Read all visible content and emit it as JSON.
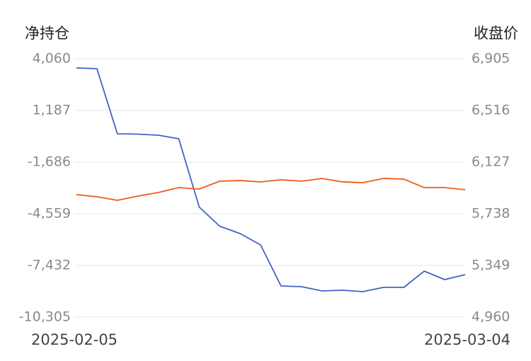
{
  "chart_data": {
    "type": "line",
    "ylabel": "净持仓",
    "y2label": "收盘价",
    "categories": [
      "2025-02-05",
      null,
      null,
      null,
      null,
      null,
      null,
      null,
      null,
      null,
      null,
      null,
      null,
      null,
      null,
      null,
      null,
      null,
      null,
      "2025-03-04"
    ],
    "series": [
      {
        "color": "#4263c4",
        "axis": "y",
        "values": [
          3548,
          3509,
          -112,
          -131,
          -190,
          -387,
          -4184,
          -5247,
          -5661,
          -6291,
          -8573,
          -8612,
          -8849,
          -8810,
          -8888,
          -8652,
          -8652,
          -7747,
          -8219,
          -7944
        ]
      },
      {
        "color": "#f05a16",
        "axis": "y2",
        "values": [
          5882,
          5866,
          5839,
          5871,
          5898,
          5935,
          5924,
          5983,
          5988,
          5978,
          5994,
          5983,
          6004,
          5978,
          5972,
          6004,
          5999,
          5935,
          5935,
          5919
        ]
      }
    ],
    "ylim": [
      -10305,
      4060
    ],
    "yticks": [
      {
        "value": 4060,
        "label": "4,060"
      },
      {
        "value": 1187,
        "label": "1,187"
      },
      {
        "value": -1686,
        "label": "-1,686"
      },
      {
        "value": -4559,
        "label": "-4,559"
      },
      {
        "value": -7432,
        "label": "-7,432"
      },
      {
        "value": -10305,
        "label": "-10,305"
      }
    ],
    "y2lim": [
      4960,
      6905
    ],
    "y2ticks": [
      {
        "value": 6905,
        "label": "6,905"
      },
      {
        "value": 6516,
        "label": "6,516"
      },
      {
        "value": 6127,
        "label": "6,127"
      },
      {
        "value": 5738,
        "label": "5,738"
      },
      {
        "value": 5349,
        "label": "5,349"
      },
      {
        "value": 4960,
        "label": "4,960"
      }
    ],
    "grid": true
  }
}
